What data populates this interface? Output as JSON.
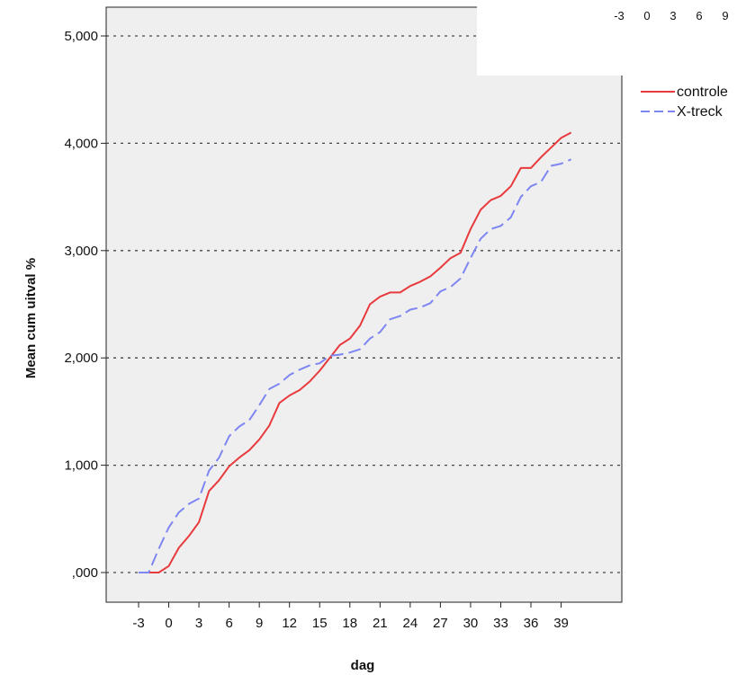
{
  "chart_data": {
    "type": "line",
    "title": "",
    "xlabel": "dag",
    "ylabel": "Mean cum uitval %",
    "xlim": [
      -6.5,
      42.5
    ],
    "ylim": [
      -0.3,
      5.3
    ],
    "x_ticks": [
      -3,
      0,
      3,
      6,
      9,
      12,
      15,
      18,
      21,
      24,
      27,
      30,
      33,
      36,
      39
    ],
    "x_tick_labels": [
      "-3",
      "0",
      "3",
      "6",
      "9",
      "12",
      "15",
      "18",
      "21",
      "24",
      "27",
      "30",
      "33",
      "36",
      "39"
    ],
    "y_ticks": [
      0,
      1,
      2,
      3,
      4,
      5
    ],
    "y_tick_labels": [
      ",000",
      "1,000",
      "2,000",
      "3,000",
      "4,000",
      "5,000"
    ],
    "grid": "horizontal dotted",
    "legend_position": "right",
    "plot_background": "#efefef",
    "x": [
      -3,
      -2,
      -1,
      0,
      1,
      2,
      3,
      4,
      5,
      6,
      7,
      8,
      9,
      10,
      11,
      12,
      13,
      14,
      15,
      16,
      17,
      18,
      19,
      20,
      21,
      22,
      23,
      24,
      25,
      26,
      27,
      28,
      29,
      30,
      31,
      32,
      33,
      34,
      35,
      36,
      37,
      38,
      39,
      40
    ],
    "series": [
      {
        "name": "controle",
        "color": "#e8393d",
        "dash": "solid",
        "values": [
          0.0,
          0.0,
          0.0,
          0.06,
          0.23,
          0.34,
          0.47,
          0.76,
          0.86,
          0.99,
          1.07,
          1.14,
          1.24,
          1.37,
          1.58,
          1.65,
          1.7,
          1.78,
          1.88,
          2.0,
          2.12,
          2.18,
          2.3,
          2.5,
          2.57,
          2.61,
          2.61,
          2.67,
          2.71,
          2.76,
          2.84,
          2.93,
          2.98,
          3.2,
          3.38,
          3.47,
          3.51,
          3.6,
          3.77,
          3.77,
          3.87,
          3.96,
          4.05,
          4.1
        ]
      },
      {
        "name": "X-treck",
        "color": "#7e86f2",
        "dash": "dashed",
        "values": [
          0.0,
          0.0,
          0.22,
          0.42,
          0.56,
          0.64,
          0.69,
          0.95,
          1.07,
          1.27,
          1.36,
          1.42,
          1.56,
          1.71,
          1.76,
          1.84,
          1.89,
          1.93,
          1.95,
          2.02,
          2.03,
          2.05,
          2.08,
          2.18,
          2.24,
          2.36,
          2.39,
          2.45,
          2.47,
          2.51,
          2.62,
          2.66,
          2.74,
          2.93,
          3.11,
          3.2,
          3.23,
          3.31,
          3.5,
          3.6,
          3.64,
          3.79,
          3.81,
          3.85
        ]
      }
    ]
  },
  "overlay_axis_labels": [
    "-3",
    "0",
    "3",
    "6",
    "9"
  ]
}
